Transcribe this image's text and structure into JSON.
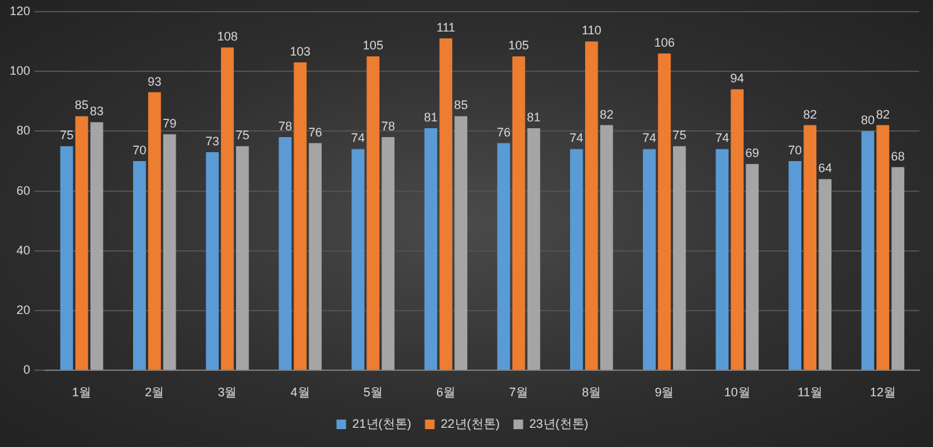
{
  "chart_data": {
    "type": "bar",
    "categories": [
      "1월",
      "2월",
      "3월",
      "4월",
      "5월",
      "6월",
      "7월",
      "8월",
      "9월",
      "10월",
      "11월",
      "12월"
    ],
    "series": [
      {
        "name": "21년(천톤)",
        "color": "#5b9bd5",
        "values": [
          75,
          70,
          73,
          78,
          74,
          81,
          76,
          74,
          74,
          74,
          70,
          80
        ]
      },
      {
        "name": "22년(천톤)",
        "color": "#ed7d31",
        "values": [
          85,
          93,
          108,
          103,
          105,
          111,
          105,
          110,
          106,
          94,
          82,
          82
        ]
      },
      {
        "name": "23년(천톤)",
        "color": "#a5a5a5",
        "values": [
          83,
          79,
          75,
          76,
          78,
          85,
          81,
          82,
          75,
          69,
          64,
          68
        ]
      }
    ],
    "ylim": [
      0,
      120
    ],
    "yticks": [
      0,
      20,
      40,
      60,
      80,
      100,
      120
    ],
    "grid": "y",
    "legend": "bottom",
    "data_labels": true
  }
}
